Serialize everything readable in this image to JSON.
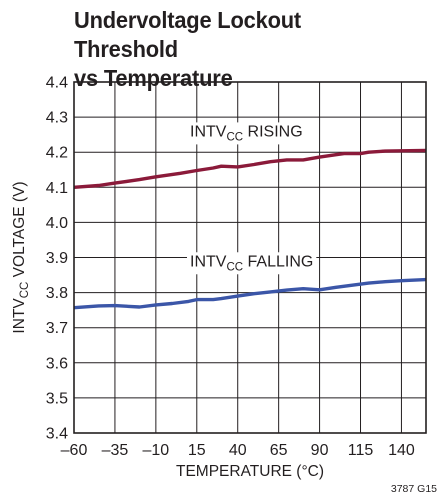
{
  "chart_data": {
    "type": "line",
    "title_lines": [
      "Undervoltage Lockout Threshold",
      "vs Temperature"
    ],
    "xlabel": "TEMPERATURE (°C)",
    "ylabel": {
      "prefix": "INTV",
      "sub": "CC",
      "suffix": " VOLTAGE (V)"
    },
    "xlim": [
      -60,
      155
    ],
    "ylim": [
      3.4,
      4.4
    ],
    "xticks": [
      -60,
      -35,
      -10,
      15,
      40,
      65,
      90,
      115,
      140
    ],
    "xtick_labels": [
      "–60",
      "–35",
      "–10",
      "15",
      "40",
      "65",
      "90",
      "115",
      "140"
    ],
    "yticks": [
      3.4,
      3.5,
      3.6,
      3.7,
      3.8,
      3.9,
      4.0,
      4.1,
      4.2,
      4.3,
      4.4
    ],
    "ytick_labels": [
      "3.4",
      "3.5",
      "3.6",
      "3.7",
      "3.8",
      "3.9",
      "4.0",
      "4.1",
      "4.2",
      "4.3",
      "4.4"
    ],
    "grid": true,
    "series": [
      {
        "name": {
          "prefix": "INTV",
          "sub": "CC",
          "suffix": " RISING"
        },
        "color": "#8b1a3a",
        "x": [
          -60,
          -45,
          -35,
          -20,
          -10,
          5,
          15,
          25,
          30,
          40,
          50,
          60,
          70,
          80,
          90,
          100,
          105,
          115,
          120,
          130,
          140,
          155
        ],
        "y": [
          4.1,
          4.105,
          4.112,
          4.122,
          4.13,
          4.14,
          4.148,
          4.155,
          4.16,
          4.158,
          4.165,
          4.173,
          4.178,
          4.178,
          4.186,
          4.193,
          4.196,
          4.196,
          4.2,
          4.203,
          4.204,
          4.205
        ]
      },
      {
        "name": {
          "prefix": "INTV",
          "sub": "CC",
          "suffix": " FALLING"
        },
        "color": "#3b56a8",
        "x": [
          -60,
          -45,
          -35,
          -20,
          -10,
          0,
          10,
          15,
          25,
          30,
          40,
          50,
          60,
          70,
          80,
          90,
          100,
          110,
          120,
          130,
          140,
          155
        ],
        "y": [
          3.757,
          3.762,
          3.763,
          3.759,
          3.765,
          3.769,
          3.775,
          3.78,
          3.78,
          3.783,
          3.79,
          3.797,
          3.802,
          3.807,
          3.811,
          3.808,
          3.815,
          3.821,
          3.827,
          3.831,
          3.834,
          3.837
        ]
      }
    ]
  },
  "figure_code": "3787 G15"
}
